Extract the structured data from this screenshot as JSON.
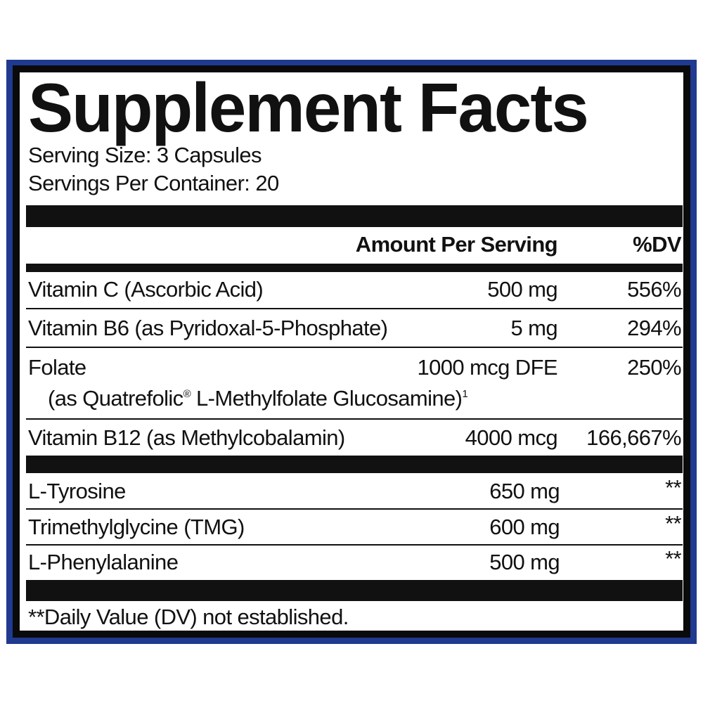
{
  "title": "Supplement Facts",
  "serving_size": "Serving Size: 3 Capsules",
  "servings_per_container": "Servings Per Container: 20",
  "header": {
    "amount": "Amount Per Serving",
    "dv": "%DV"
  },
  "rows": [
    {
      "name": "Vitamin C (Ascorbic Acid)",
      "amount": "500 mg",
      "dv": "556%"
    },
    {
      "name": "Vitamin B6 (as Pyridoxal-5-Phosphate)",
      "amount": "5 mg",
      "dv": "294%"
    },
    {
      "name": "Folate",
      "sub_prefix": "(as Quatrefolic",
      "sub_reg": "®",
      "sub_suffix": " L-Methylfolate Glucosamine)",
      "sub_note": "1",
      "amount": "1000 mcg DFE",
      "dv": "250%"
    },
    {
      "name": "Vitamin B12 (as Methylcobalamin)",
      "amount": "4000 mcg",
      "dv": "166,667%"
    },
    {
      "name": "L-Tyrosine",
      "amount": "650 mg",
      "dv": "**"
    },
    {
      "name": "Trimethylglycine (TMG)",
      "amount": "600 mg",
      "dv": "**"
    },
    {
      "name": "L-Phenylalanine",
      "amount": "500 mg",
      "dv": "**"
    }
  ],
  "footnote": "**Daily Value (DV) not established.",
  "colors": {
    "frame_outer": "#1f3a8f",
    "frame_inner": "#0a0a0a"
  }
}
